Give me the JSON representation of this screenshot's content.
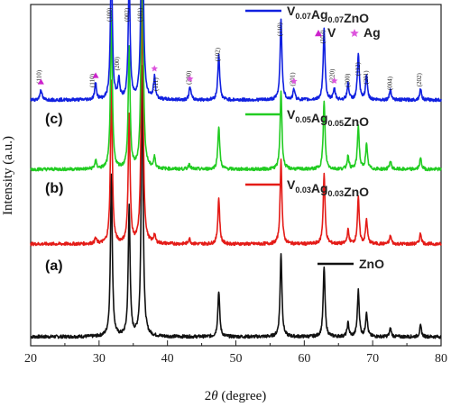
{
  "chart_data": {
    "type": "line",
    "xlabel_pre": "2",
    "xlabel_theta": "θ",
    "xlabel_post": " (degree)",
    "ylabel": "Intensity (a.u.)",
    "xlim": [
      20,
      80
    ],
    "x_ticks": [
      "20",
      "30",
      "40",
      "50",
      "60",
      "70",
      "80"
    ],
    "grid": false,
    "series": [
      {
        "key": "zno",
        "panel": "(a)",
        "color": "#111111",
        "legend": {
          "main": "ZnO",
          "parts": []
        },
        "peaks": [
          [
            31.8,
            0.6
          ],
          [
            34.4,
            0.48
          ],
          [
            36.3,
            1.0
          ],
          [
            47.5,
            0.17
          ],
          [
            56.6,
            0.31
          ],
          [
            62.9,
            0.26
          ],
          [
            66.4,
            0.05
          ],
          [
            67.9,
            0.17
          ],
          [
            69.1,
            0.09
          ],
          [
            72.6,
            0.03
          ],
          [
            77.0,
            0.04
          ]
        ]
      },
      {
        "key": "v003",
        "panel": "(b)",
        "color": "#e41b17",
        "legend": {
          "main": "",
          "parts": [
            [
              "V",
              ""
            ],
            [
              "0.03",
              "sub"
            ],
            [
              "Ag",
              ""
            ],
            [
              "0.03",
              "sub"
            ],
            [
              "ZnO",
              ""
            ]
          ]
        },
        "peaks": [
          [
            29.5,
            0.02
          ],
          [
            31.8,
            0.6
          ],
          [
            34.4,
            0.48
          ],
          [
            36.3,
            1.0
          ],
          [
            38.1,
            0.03
          ],
          [
            43.2,
            0.02
          ],
          [
            47.5,
            0.17
          ],
          [
            56.6,
            0.31
          ],
          [
            62.9,
            0.26
          ],
          [
            66.4,
            0.05
          ],
          [
            67.9,
            0.17
          ],
          [
            69.1,
            0.09
          ],
          [
            72.6,
            0.03
          ],
          [
            77.0,
            0.04
          ]
        ]
      },
      {
        "key": "v005",
        "panel": "(c)",
        "color": "#22cc22",
        "legend": {
          "main": "",
          "parts": [
            [
              "V",
              ""
            ],
            [
              "0.05",
              "sub"
            ],
            [
              "Ag",
              ""
            ],
            [
              "0.05",
              "sub"
            ],
            [
              "ZnO",
              ""
            ]
          ]
        },
        "peaks": [
          [
            29.5,
            0.03
          ],
          [
            31.8,
            0.58
          ],
          [
            34.4,
            0.45
          ],
          [
            36.3,
            1.0
          ],
          [
            38.1,
            0.04
          ],
          [
            43.2,
            0.02
          ],
          [
            47.5,
            0.16
          ],
          [
            56.6,
            0.29
          ],
          [
            62.9,
            0.25
          ],
          [
            66.4,
            0.05
          ],
          [
            67.9,
            0.16
          ],
          [
            69.1,
            0.09
          ],
          [
            72.6,
            0.03
          ],
          [
            77.0,
            0.04
          ]
        ]
      },
      {
        "key": "v007",
        "panel": "",
        "color": "#1020e0",
        "legend": {
          "main": "",
          "parts": [
            [
              "V",
              ""
            ],
            [
              "0.07",
              "sub"
            ],
            [
              "Ag",
              ""
            ],
            [
              "0.07",
              "sub"
            ],
            [
              "ZnO",
              ""
            ]
          ]
        },
        "peaks": [
          [
            21.5,
            0.04
          ],
          [
            29.5,
            0.06
          ],
          [
            31.8,
            0.55
          ],
          [
            32.9,
            0.07
          ],
          [
            34.4,
            0.45
          ],
          [
            36.3,
            1.0
          ],
          [
            38.1,
            0.08
          ],
          [
            43.3,
            0.05
          ],
          [
            47.5,
            0.17
          ],
          [
            56.6,
            0.3
          ],
          [
            58.5,
            0.04
          ],
          [
            62.9,
            0.26
          ],
          [
            64.4,
            0.04
          ],
          [
            66.4,
            0.06
          ],
          [
            67.9,
            0.17
          ],
          [
            69.1,
            0.09
          ],
          [
            72.6,
            0.04
          ],
          [
            77.0,
            0.04
          ]
        ]
      }
    ],
    "peak_labels": [
      {
        "x": 21.5,
        "text": "(110)"
      },
      {
        "x": 29.3,
        "text": "(110)"
      },
      {
        "x": 31.8,
        "text": "(100)"
      },
      {
        "x": 32.9,
        "text": "(200)"
      },
      {
        "x": 34.4,
        "text": "(002)"
      },
      {
        "x": 36.3,
        "text": "(101)"
      },
      {
        "x": 38.6,
        "text": "(111)"
      },
      {
        "x": 43.4,
        "text": "(200)"
      },
      {
        "x": 47.6,
        "text": "(102)"
      },
      {
        "x": 56.7,
        "text": "(110)"
      },
      {
        "x": 58.6,
        "text": "(301)"
      },
      {
        "x": 63.0,
        "text": "(103)"
      },
      {
        "x": 64.4,
        "text": "(220)"
      },
      {
        "x": 66.6,
        "text": "(200)"
      },
      {
        "x": 68.1,
        "text": "(112)"
      },
      {
        "x": 69.3,
        "text": "(201)"
      },
      {
        "x": 72.8,
        "text": "(004)"
      },
      {
        "x": 77.1,
        "text": "(202)"
      }
    ],
    "markers": {
      "v_label": "V",
      "ag_label": "Ag",
      "v_color": "#cc22cc",
      "ag_color": "#dd55dd",
      "v_positions": [
        21.5,
        29.5
      ],
      "ag_positions": [
        38.1,
        43.3,
        58.5,
        64.4
      ]
    }
  }
}
